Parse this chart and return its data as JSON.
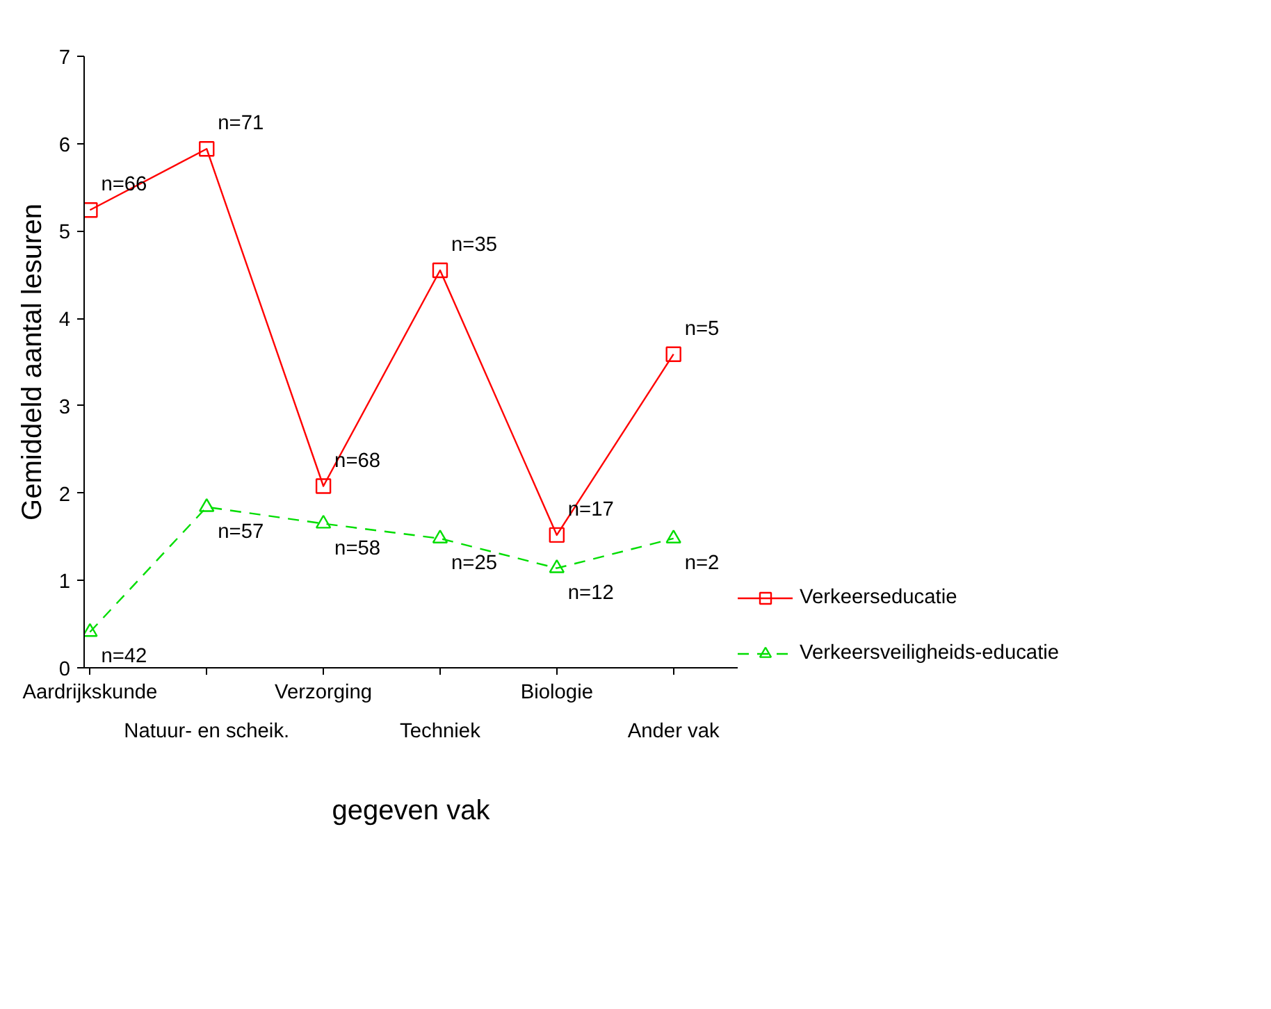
{
  "chart_data": {
    "type": "line",
    "xlabel": "gegeven vak",
    "ylabel": "Gemiddeld aantal lesuren",
    "annotations": [
      "n=66",
      "n=71",
      "n=68",
      "n=35",
      "n=17",
      "n=5",
      "n=42",
      "n=57",
      "n=58",
      "n=25",
      "n=12",
      "n=2"
    ],
    "categories": [
      "Aardrijkskunde",
      "Natuur- en scheik.",
      "Verzorging",
      "Techniek",
      "Biologie",
      "Ander vak"
    ],
    "ylim": [
      0,
      7
    ],
    "yticks": [
      0,
      1,
      2,
      3,
      4,
      5,
      6,
      7
    ],
    "grid": false,
    "legend": "right",
    "series": [
      {
        "name": "Verkeerseducatie",
        "color": "#ff0000",
        "marker": "square",
        "line_style": "solid",
        "values": [
          5.24,
          5.94,
          2.08,
          4.55,
          1.52,
          3.59
        ]
      },
      {
        "name": "Verkeersveiligheids-educatie",
        "color": "#00dd00",
        "marker": "triangle",
        "line_style": "dashed",
        "values": [
          0.41,
          1.84,
          1.65,
          1.48,
          1.14,
          1.48
        ]
      }
    ]
  }
}
